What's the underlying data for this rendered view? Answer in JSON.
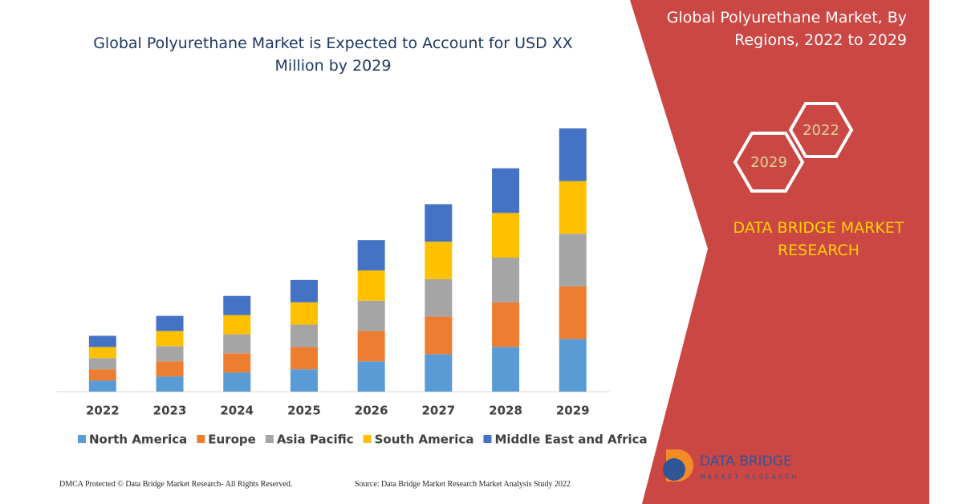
{
  "title": "Global Polyurethane Market is Expected to Account for USD XX Million by 2029",
  "side_title": "Global Polyurethane Market, By Regions, 2022 to 2029",
  "hexagons": [
    "2022",
    "2029"
  ],
  "brand": "DATA BRIDGE MARKET RESEARCH",
  "logo": {
    "name": "DATA BRIDGE",
    "tagline": "MARKET RESEARCH"
  },
  "footer": {
    "left": "DMCA Protected © Data Bridge Market Research- All Rights Reserved.",
    "right": "Source: Data Bridge Market Research Market Analysis Study 2022"
  },
  "chart_data": {
    "type": "stacked-bar",
    "categories": [
      "2022",
      "2023",
      "2024",
      "2025",
      "2026",
      "2027",
      "2028",
      "2029"
    ],
    "ylim": [
      0,
      330
    ],
    "series": [
      {
        "name": "North America",
        "color": "#5b9bd5",
        "values": [
          14,
          19,
          24,
          28,
          38,
          47,
          56,
          66
        ]
      },
      {
        "name": "Europe",
        "color": "#ed7d31",
        "values": [
          14,
          19,
          24,
          28,
          38,
          47,
          56,
          66
        ]
      },
      {
        "name": "Asia Pacific",
        "color": "#a5a5a5",
        "values": [
          14,
          19,
          24,
          28,
          38,
          47,
          56,
          66
        ]
      },
      {
        "name": "South America",
        "color": "#ffc000",
        "values": [
          14,
          19,
          24,
          28,
          38,
          47,
          56,
          66
        ]
      },
      {
        "name": "Middle East and Africa",
        "color": "#4472c4",
        "values": [
          14,
          19,
          24,
          28,
          38,
          47,
          56,
          66
        ]
      }
    ]
  }
}
